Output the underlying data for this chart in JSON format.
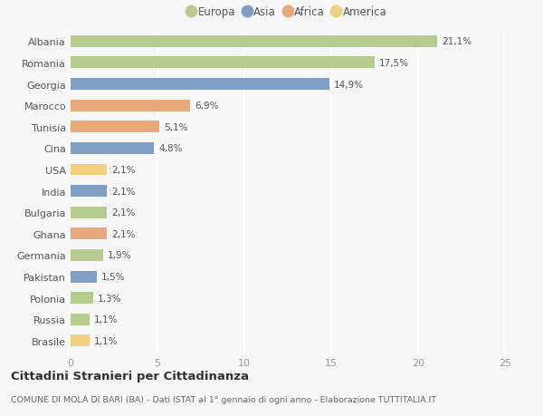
{
  "countries": [
    "Albania",
    "Romania",
    "Georgia",
    "Marocco",
    "Tunisia",
    "Cina",
    "USA",
    "India",
    "Bulgaria",
    "Ghana",
    "Germania",
    "Pakistan",
    "Polonia",
    "Russia",
    "Brasile"
  ],
  "values": [
    21.1,
    17.5,
    14.9,
    6.9,
    5.1,
    4.8,
    2.1,
    2.1,
    2.1,
    2.1,
    1.9,
    1.5,
    1.3,
    1.1,
    1.1
  ],
  "labels": [
    "21,1%",
    "17,5%",
    "14,9%",
    "6,9%",
    "5,1%",
    "4,8%",
    "2,1%",
    "2,1%",
    "2,1%",
    "2,1%",
    "1,9%",
    "1,5%",
    "1,3%",
    "1,1%",
    "1,1%"
  ],
  "continents": [
    "Europa",
    "Europa",
    "Asia",
    "Africa",
    "Africa",
    "Asia",
    "America",
    "Asia",
    "Europa",
    "Africa",
    "Europa",
    "Asia",
    "Europa",
    "Europa",
    "America"
  ],
  "colors": {
    "Europa": "#b5cc8e",
    "Asia": "#7f9fc6",
    "Africa": "#e8a97a",
    "America": "#f0d080"
  },
  "legend_labels": [
    "Europa",
    "Asia",
    "Africa",
    "America"
  ],
  "title": "Cittadini Stranieri per Cittadinanza",
  "subtitle": "COMUNE DI MOLA DI BARI (BA) - Dati ISTAT al 1° gennaio di ogni anno - Elaborazione TUTTITALIA.IT",
  "xlim": [
    0,
    25
  ],
  "xticks": [
    0,
    5,
    10,
    15,
    20,
    25
  ],
  "background_color": "#f7f7f7",
  "grid_color": "#ffffff",
  "bar_height": 0.55
}
